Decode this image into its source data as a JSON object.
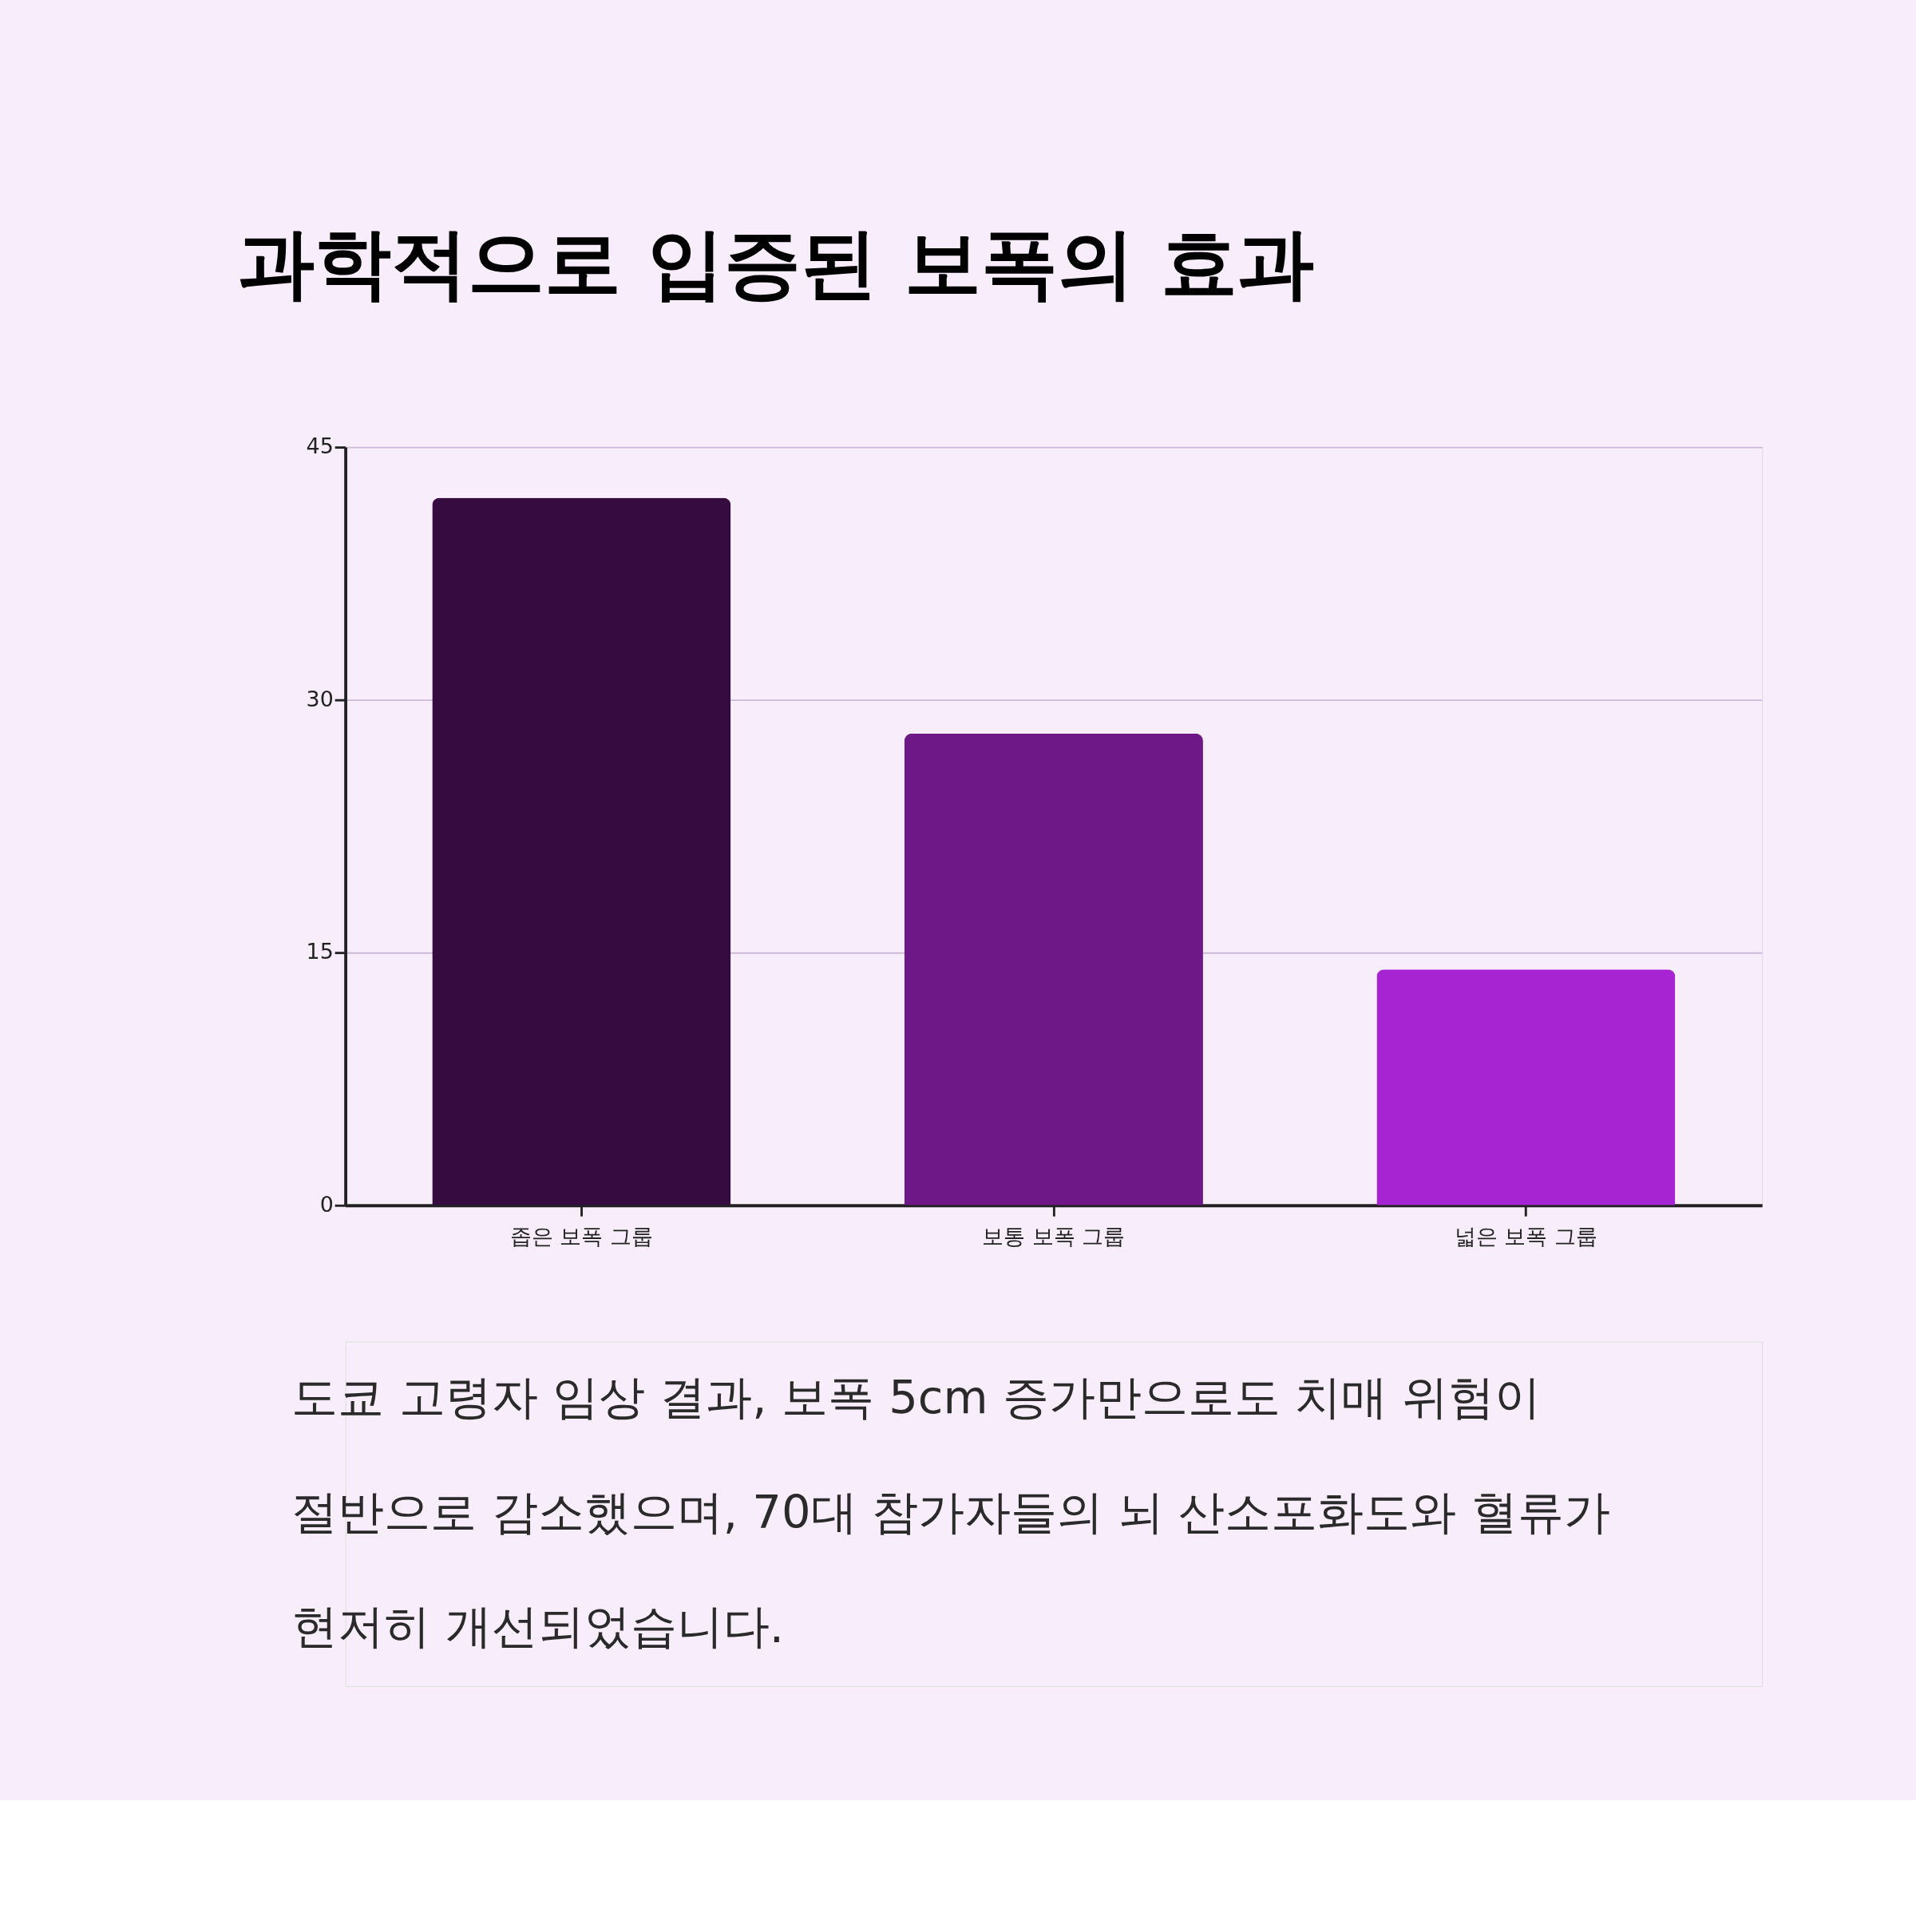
{
  "chart_data": {
    "type": "bar",
    "title": "과학적으로 입증된 보폭의 효과",
    "categories": [
      "좁은 보폭 그룹",
      "보통 보폭 그룹",
      "넓은 보폭 그룹"
    ],
    "values": [
      42,
      28,
      14
    ],
    "colors": [
      "#360b3f",
      "#6d1886",
      "#a724d3"
    ],
    "ylim": [
      0,
      45
    ],
    "yticks": [
      0,
      15,
      30,
      45
    ],
    "grid": "y",
    "annotations": [
      "도쿄 고령자 임상 결과, 보폭 5cm 증가만으로도 치매 위험이 절반으로 감소했으며, 70대 참가자들의 뇌 산소포화도와 혈류가 현저히 개선되었습니다."
    ]
  }
}
